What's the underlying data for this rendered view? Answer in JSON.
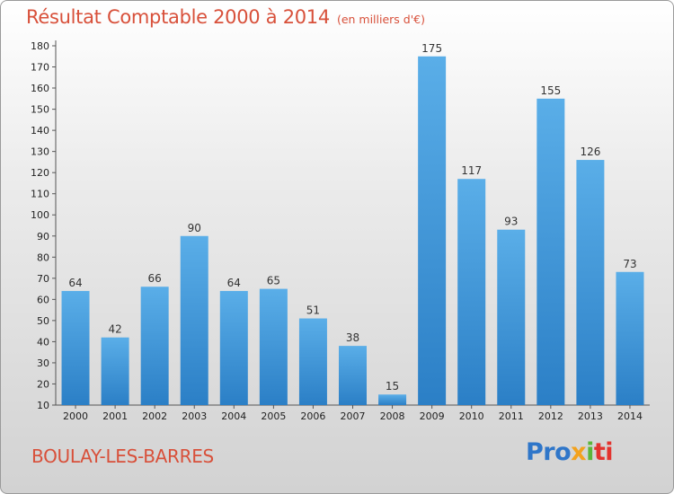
{
  "header": {
    "title": "Résultat Comptable 2000 à 2014",
    "subtitle": "(en milliers d'€)"
  },
  "footer": {
    "city": "BOULAY-LES-BARRES",
    "logo": [
      "Pro",
      "x",
      "i",
      "ti"
    ]
  },
  "colors": {
    "bar_top": "#5aaee8",
    "bar_bottom": "#2b7fc6",
    "title": "#d8503a"
  },
  "chart_data": {
    "type": "bar",
    "title": "Résultat Comptable 2000 à 2014",
    "subtitle": "(en milliers d'€)",
    "categories": [
      "2000",
      "2001",
      "2002",
      "2003",
      "2004",
      "2005",
      "2006",
      "2007",
      "2008",
      "2009",
      "2010",
      "2011",
      "2012",
      "2013",
      "2014"
    ],
    "values": [
      64,
      42,
      66,
      90,
      64,
      65,
      51,
      38,
      15,
      175,
      117,
      93,
      155,
      126,
      73
    ],
    "ylim": [
      10,
      180
    ],
    "yticks": [
      10,
      20,
      30,
      40,
      50,
      60,
      70,
      80,
      90,
      100,
      110,
      120,
      130,
      140,
      150,
      160,
      170,
      180
    ],
    "grid": false,
    "legend": "none"
  }
}
